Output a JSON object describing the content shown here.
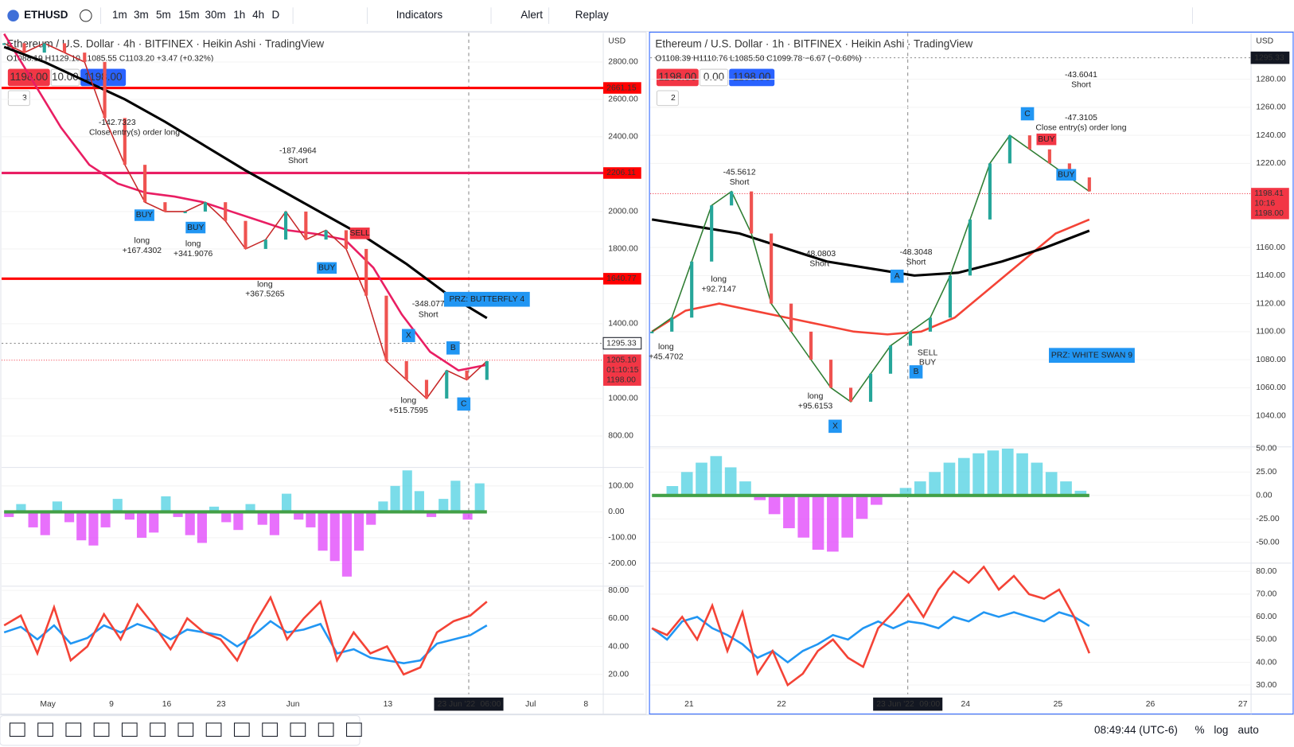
{
  "toolbar": {
    "symbol": "ETHUSD",
    "intervals": [
      "1m",
      "3m",
      "5m",
      "15m",
      "30m",
      "1h",
      "4h",
      "D"
    ],
    "indicators": "Indicators",
    "alert": "Alert",
    "replay": "Replay"
  },
  "panes": [
    {
      "legend": "Ethereum / U.S. Dollar · 4h · BITFINEX · Heikin Ashi · TradingView",
      "ohlc": "O1088.19 H1129.10 L1085.55 C1103.20 +3.47 (+0.32%)",
      "order": {
        "sell": "1198.00",
        "qty": "10.00",
        "buy": "1198.00"
      },
      "counter": "3",
      "unit": "USD",
      "price": {
        "ylim": [
          640,
          2955
        ],
        "yticks": [
          {
            "value": 800,
            "label": "800.00"
          },
          {
            "value": 1000,
            "label": "1000.00"
          },
          {
            "value": 1400,
            "label": "1400.00"
          },
          {
            "value": 1800,
            "label": "1800.00"
          },
          {
            "value": 2000,
            "label": "2000.00"
          },
          {
            "value": 2400,
            "label": "2400.00"
          },
          {
            "value": 2600,
            "label": "2600.00"
          },
          {
            "value": 2800,
            "label": "2800.00"
          }
        ],
        "levels": [
          2661.15,
          2206.11,
          1640.77
        ],
        "dotted": 1295.33,
        "last": {
          "value": 1205.1,
          "label": "1205.10"
        },
        "countdown": "01:10:15",
        "bid": {
          "value": 1198,
          "label": "1198.00"
        },
        "close": [
          2900,
          2850,
          2900,
          2850,
          2800,
          2500,
          2250,
          2050,
          2000,
          2000,
          2050,
          1950,
          1800,
          1850,
          2000,
          1850,
          1900,
          1800,
          1550,
          1200,
          1100,
          1000,
          1150,
          1100,
          1200
        ],
        "ma_long": [
          2880,
          2800,
          2700,
          2600,
          2480,
          2350,
          2220,
          2100,
          1980,
          1860,
          1720,
          1560,
          1430
        ],
        "ma_fast": [
          2950,
          2700,
          2450,
          2250,
          2150,
          2100,
          2080,
          2050,
          2000,
          1950,
          1900,
          1880,
          1850,
          1700,
          1450,
          1250,
          1150,
          1180
        ]
      },
      "oscillator": {
        "ylim": [
          -284,
          168
        ],
        "yticks": [
          {
            "value": 100,
            "label": "100.00"
          },
          {
            "value": 0,
            "label": "0.00"
          },
          {
            "value": -100,
            "label": "-100.00"
          },
          {
            "value": -200,
            "label": "-200.00"
          }
        ],
        "values": [
          -20,
          30,
          -60,
          -90,
          40,
          -40,
          -110,
          -130,
          -60,
          50,
          -30,
          -100,
          -80,
          60,
          -20,
          -90,
          -120,
          20,
          -40,
          -70,
          30,
          -50,
          -90,
          70,
          -30,
          -60,
          -150,
          -190,
          -250,
          -150,
          -50,
          40,
          100,
          160,
          80,
          -20,
          50,
          120,
          -30,
          110
        ]
      },
      "rsi": {
        "ylim": [
          8.2,
          82.4
        ],
        "yticks": [
          {
            "value": 80,
            "label": "80.00"
          },
          {
            "value": 60,
            "label": "60.00"
          },
          {
            "value": 40,
            "label": "40.00"
          },
          {
            "value": 20,
            "label": "20.00"
          }
        ],
        "fast": [
          55,
          62,
          35,
          68,
          30,
          40,
          63,
          45,
          70,
          55,
          38,
          60,
          50,
          45,
          30,
          55,
          75,
          45,
          60,
          72,
          30,
          50,
          35,
          40,
          20,
          25,
          50,
          58,
          62,
          72
        ],
        "slow": [
          50,
          54,
          45,
          55,
          42,
          46,
          55,
          50,
          56,
          52,
          45,
          52,
          50,
          48,
          40,
          48,
          58,
          50,
          52,
          56,
          35,
          38,
          32,
          30,
          28,
          30,
          42,
          45,
          48,
          55
        ]
      },
      "xticks": [
        "May",
        "9",
        "16",
        "23",
        "Jun",
        "13",
        "Jul",
        "8"
      ],
      "cursor_time": "23 Jun '22",
      "cursor_clock": "06:00",
      "annotations": [
        "PRZ: BUTTERFLY 4",
        "X",
        "B",
        "C",
        "-348.077",
        "Short",
        "-187.4964",
        "Short",
        "-142.7323",
        "Close entry(s) order long",
        "long",
        "+167.4302",
        "long",
        "+341.9076",
        "long",
        "+367.5265",
        "long",
        "+515.7595",
        "BUY",
        "BUY",
        "BUY",
        "SELL"
      ]
    },
    {
      "legend": "Ethereum / U.S. Dollar · 1h · BITFINEX · Heikin Ashi · TradingView",
      "ohlc": "O1108.39 H1110.76 L1085.50 C1099.78 −6.67 (−0.60%)",
      "order": {
        "sell": "1198.00",
        "qty": "0.00",
        "buy": "1198.00"
      },
      "counter": "2",
      "unit": "USD",
      "price": {
        "ylim": [
          1019,
          1313
        ],
        "yticks": [
          {
            "value": 1040,
            "label": "1040.00"
          },
          {
            "value": 1060,
            "label": "1060.00"
          },
          {
            "value": 1080,
            "label": "1080.00"
          },
          {
            "value": 1100,
            "label": "1100.00"
          },
          {
            "value": 1120,
            "label": "1120.00"
          },
          {
            "value": 1140,
            "label": "1140.00"
          },
          {
            "value": 1160,
            "label": "1160.00"
          },
          {
            "value": 1220,
            "label": "1220.00"
          },
          {
            "value": 1240,
            "label": "1240.00"
          },
          {
            "value": 1260,
            "label": "1260.00"
          },
          {
            "value": 1280,
            "label": "1280.00"
          }
        ],
        "levels": [],
        "dotted": 1295.33,
        "last": 1198.41,
        "countdown": "10:16",
        "bid": {
          "value": 1198,
          "label": "1198.00"
        },
        "close": [
          1100,
          1110,
          1150,
          1190,
          1200,
          1170,
          1120,
          1100,
          1080,
          1060,
          1050,
          1070,
          1090,
          1100,
          1110,
          1140,
          1180,
          1220,
          1240,
          1230,
          1220,
          1210,
          1200
        ],
        "ma_long": [
          1180,
          1175,
          1170,
          1160,
          1150,
          1145,
          1140,
          1142,
          1150,
          1160,
          1172
        ],
        "ma_fast": [
          1100,
          1115,
          1120,
          1115,
          1110,
          1105,
          1100,
          1098,
          1100,
          1110,
          1130,
          1150,
          1170,
          1180
        ]
      },
      "oscillator": {
        "ylim": [
          -71.4,
          53.6
        ],
        "yticks": [
          {
            "value": 50,
            "label": "50.00"
          },
          {
            "value": 25,
            "label": "25.00"
          },
          {
            "value": 0,
            "label": "0.00"
          },
          {
            "value": -25,
            "label": "-25.00"
          },
          {
            "value": -50,
            "label": "-50.00"
          }
        ],
        "values": [
          0,
          10,
          25,
          35,
          42,
          30,
          15,
          -5,
          -20,
          -35,
          -45,
          -58,
          -60,
          -45,
          -25,
          -10,
          0,
          8,
          15,
          25,
          35,
          40,
          45,
          48,
          50,
          45,
          35,
          25,
          15,
          5
        ]
      },
      "rsi": {
        "ylim": [
          26.7,
          82.9
        ],
        "yticks": [
          {
            "value": 80,
            "label": "80.00"
          },
          {
            "value": 70,
            "label": "70.00"
          },
          {
            "value": 60,
            "label": "60.00"
          },
          {
            "value": 50,
            "label": "50.00"
          },
          {
            "value": 40,
            "label": "40.00"
          },
          {
            "value": 30,
            "label": "30.00"
          }
        ],
        "fast": [
          55,
          52,
          60,
          50,
          65,
          45,
          62,
          35,
          45,
          30,
          35,
          45,
          50,
          42,
          38,
          55,
          62,
          70,
          60,
          72,
          80,
          75,
          82,
          72,
          78,
          70,
          68,
          72,
          60,
          44
        ],
        "slow": [
          55,
          50,
          58,
          60,
          55,
          52,
          48,
          42,
          45,
          40,
          45,
          48,
          52,
          50,
          55,
          58,
          55,
          58,
          57,
          55,
          60,
          58,
          62,
          60,
          62,
          60,
          58,
          62,
          60,
          56
        ]
      },
      "xticks": [
        "21",
        "22",
        "24",
        "25",
        "26",
        "27"
      ],
      "cursor_time": "23 Jun '22",
      "cursor_clock": "09:00",
      "annotations": [
        "PRZ: WHITE SWAN 9",
        "X",
        "A",
        "B",
        "C",
        "-45.5612",
        "Short",
        "-43.6041",
        "Short",
        "-47.3105",
        "Close entry(s) order long",
        "-48.3048",
        "Short",
        "-48.0803",
        "Short",
        "long",
        "+45.4702",
        "long",
        "+92.7147",
        "long",
        "+95.6153",
        "SELL",
        "BUY",
        "BUY",
        "BUY"
      ]
    }
  ],
  "status": {
    "clock": "08:49:44 (UTC-6)",
    "percent": "%",
    "log": "log",
    "auto": "auto"
  }
}
